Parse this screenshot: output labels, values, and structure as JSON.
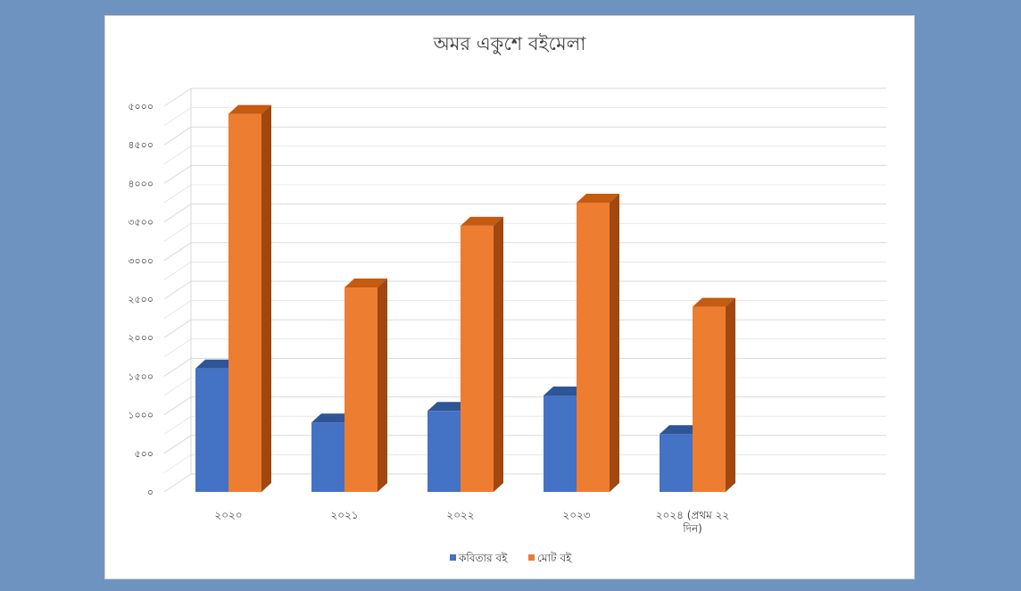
{
  "chart_data": {
    "type": "bar",
    "style": "3d-clustered-column",
    "title": "অমর একুশে বইমেলা",
    "xlabel": "",
    "ylabel": "",
    "ylim": [
      0,
      5000
    ],
    "y_ticks": [
      0,
      500,
      1000,
      1500,
      2000,
      2500,
      3000,
      3500,
      4000,
      4500,
      5000
    ],
    "y_tick_labels": [
      "০",
      "৫০০",
      "১০০০",
      "১৫০০",
      "২০০০",
      "২৫০০",
      "৩০০০",
      "৩৫০০",
      "৪০০০",
      "৪৫০০",
      "৫০০০"
    ],
    "categories": [
      "২০২০",
      "২০২১",
      "২০২২",
      "২০২৩",
      "২০২৪ (প্রথম ২২ দিন)"
    ],
    "category_label_lines": [
      [
        "২০২০"
      ],
      [
        "২০২১"
      ],
      [
        "২০২২"
      ],
      [
        "২০২৩"
      ],
      [
        "২০২৪ (প্রথম ২২",
        "দিন)"
      ]
    ],
    "series": [
      {
        "name": "কবিতার বই",
        "values": [
          1600,
          900,
          1050,
          1250,
          750
        ],
        "color": "#4472c4",
        "top_color": "#2f5597",
        "side_color": "#2f5597"
      },
      {
        "name": "মোট বই",
        "values": [
          4900,
          2650,
          3450,
          3750,
          2400
        ],
        "color": "#ed7d31",
        "top_color": "#c55a11",
        "side_color": "#a0480f"
      }
    ],
    "grid": true,
    "legend_position": "bottom"
  },
  "colors": {
    "page_background": "#6f93c1",
    "panel_background": "#ffffff",
    "gridline": "#d9d9d9",
    "text": "#404040"
  }
}
